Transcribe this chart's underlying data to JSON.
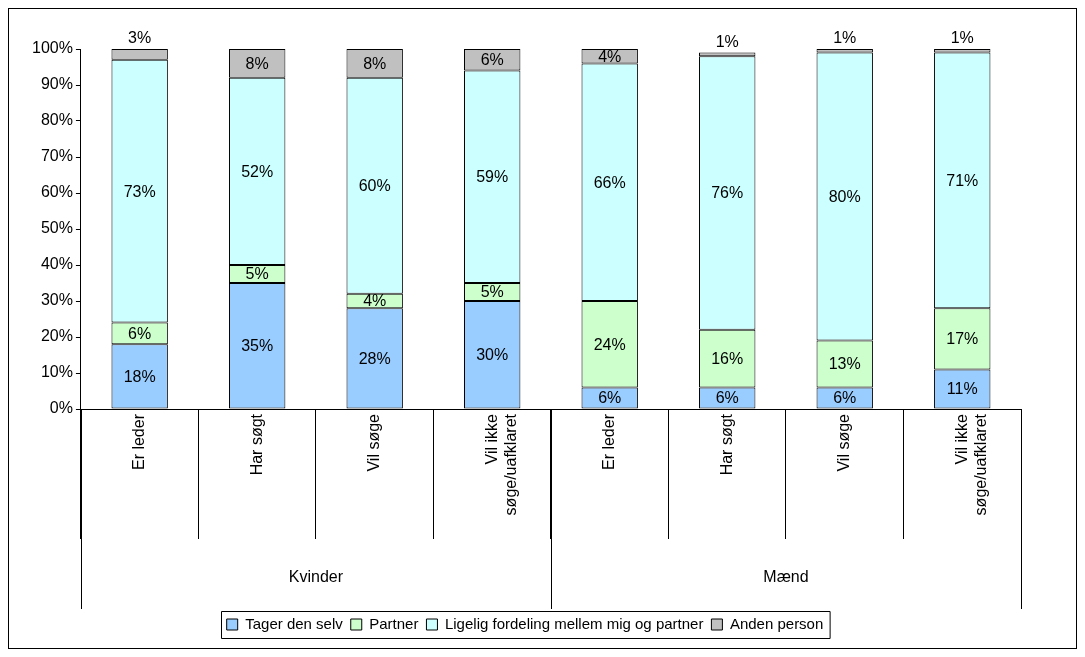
{
  "chart_data": {
    "type": "bar",
    "stacked": true,
    "categories": [
      "Er leder",
      "Har søgt",
      "Vil søge",
      "Vil ikke søge/uafklaret",
      "Er leder",
      "Har søgt",
      "Vil søge",
      "Vil ikke søge/uafklaret"
    ],
    "annotations": [
      "Kvinder",
      "Mænd"
    ],
    "series": [
      {
        "name": "Tager den selv",
        "color": "#99ccff",
        "values": [
          18,
          35,
          28,
          30,
          6,
          6,
          6,
          11
        ],
        "value_labels": [
          "18%",
          "35%",
          "28%",
          "30%",
          "6%",
          "6%",
          "6%",
          "11%"
        ]
      },
      {
        "name": "Partner",
        "color": "#ccffcc",
        "values": [
          6,
          5,
          4,
          5,
          24,
          16,
          13,
          17
        ],
        "value_labels": [
          "6%",
          "5%",
          "4%",
          "5%",
          "24%",
          "16%",
          "13%",
          "17%"
        ]
      },
      {
        "name": "Ligelig fordeling mellem mig og partner",
        "color": "#ccffff",
        "values": [
          73,
          52,
          60,
          59,
          66,
          76,
          80,
          71
        ],
        "value_labels": [
          "73%",
          "52%",
          "60%",
          "59%",
          "66%",
          "76%",
          "80%",
          "71%"
        ]
      },
      {
        "name": "Anden person",
        "color": "#c0c0c0",
        "values": [
          3,
          8,
          8,
          6,
          4,
          1,
          1,
          1
        ],
        "value_labels": [
          "3%",
          "8%",
          "8%",
          "6%",
          "4%",
          "1%",
          "1%",
          "1%"
        ]
      }
    ],
    "ylim": [
      0,
      100
    ],
    "yticks": [
      {
        "value": 0,
        "label": "0%"
      },
      {
        "value": 10,
        "label": "10%"
      },
      {
        "value": 20,
        "label": "20%"
      },
      {
        "value": 30,
        "label": "30%"
      },
      {
        "value": 40,
        "label": "40%"
      },
      {
        "value": 50,
        "label": "50%"
      },
      {
        "value": 60,
        "label": "60%"
      },
      {
        "value": 70,
        "label": "70%"
      },
      {
        "value": 80,
        "label": "80%"
      },
      {
        "value": 90,
        "label": "90%"
      },
      {
        "value": 100,
        "label": "100%"
      }
    ],
    "grid": false,
    "legend": "bottom"
  }
}
